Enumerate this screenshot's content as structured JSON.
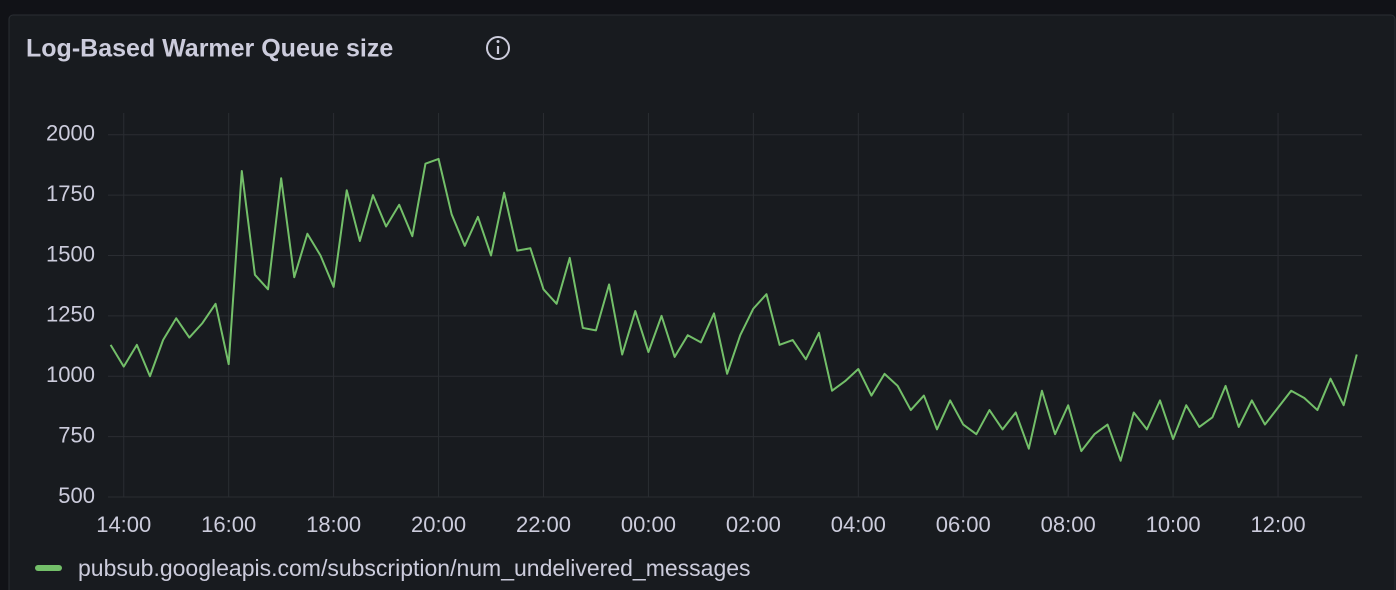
{
  "chart_data": {
    "type": "line",
    "title": "Log-Based Warmer Queue size",
    "x": [
      13.75,
      14.0,
      14.25,
      14.5,
      14.75,
      15.0,
      15.25,
      15.5,
      15.75,
      16.0,
      16.25,
      16.5,
      16.75,
      17.0,
      17.25,
      17.5,
      17.75,
      18.0,
      18.25,
      18.5,
      18.75,
      19.0,
      19.25,
      19.5,
      19.75,
      20.0,
      20.25,
      20.5,
      20.75,
      21.0,
      21.25,
      21.5,
      21.75,
      22.0,
      22.25,
      22.5,
      22.75,
      23.0,
      23.25,
      23.5,
      23.75,
      24.0,
      24.25,
      24.5,
      24.75,
      25.0,
      25.25,
      25.5,
      25.75,
      26.0,
      26.25,
      26.5,
      26.75,
      27.0,
      27.25,
      27.5,
      27.75,
      28.0,
      28.25,
      28.5,
      28.75,
      29.0,
      29.25,
      29.5,
      29.75,
      30.0,
      30.25,
      30.5,
      30.75,
      31.0,
      31.25,
      31.5,
      31.75,
      32.0,
      32.25,
      32.5,
      32.75,
      33.0,
      33.25,
      33.5,
      33.75,
      34.0,
      34.25,
      34.5,
      34.75,
      35.0,
      35.25,
      35.5,
      35.75,
      36.0,
      36.25,
      36.5,
      36.75,
      37.0,
      37.25,
      37.5
    ],
    "series": [
      {
        "name": "pubsub.googleapis.com/subscription/num_undelivered_messages",
        "color": "#73bf69",
        "values": [
          1130,
          1040,
          1130,
          1000,
          1150,
          1240,
          1160,
          1220,
          1300,
          1050,
          1850,
          1420,
          1360,
          1820,
          1410,
          1590,
          1500,
          1370,
          1770,
          1560,
          1750,
          1620,
          1710,
          1580,
          1880,
          1900,
          1670,
          1540,
          1660,
          1500,
          1760,
          1520,
          1530,
          1360,
          1300,
          1490,
          1200,
          1190,
          1380,
          1090,
          1270,
          1100,
          1250,
          1080,
          1170,
          1140,
          1260,
          1010,
          1170,
          1280,
          1340,
          1130,
          1150,
          1070,
          1180,
          940,
          980,
          1030,
          920,
          1010,
          960,
          860,
          920,
          780,
          900,
          800,
          760,
          860,
          780,
          850,
          700,
          940,
          760,
          880,
          690,
          760,
          800,
          650,
          850,
          780,
          900,
          740,
          880,
          790,
          830,
          960,
          790,
          900,
          800,
          870,
          940,
          910,
          860,
          990,
          880,
          1090
        ]
      }
    ],
    "xlim": [
      13.7,
      37.6
    ],
    "xticks": [
      {
        "value": 14,
        "label": "14:00"
      },
      {
        "value": 16,
        "label": "16:00"
      },
      {
        "value": 18,
        "label": "18:00"
      },
      {
        "value": 20,
        "label": "20:00"
      },
      {
        "value": 22,
        "label": "22:00"
      },
      {
        "value": 24,
        "label": "00:00"
      },
      {
        "value": 26,
        "label": "02:00"
      },
      {
        "value": 28,
        "label": "04:00"
      },
      {
        "value": 30,
        "label": "06:00"
      },
      {
        "value": 32,
        "label": "08:00"
      },
      {
        "value": 34,
        "label": "10:00"
      },
      {
        "value": 36,
        "label": "12:00"
      }
    ],
    "ylim": [
      500,
      2090
    ],
    "yticks": [
      500,
      750,
      1000,
      1250,
      1500,
      1750,
      2000
    ],
    "grid": true
  }
}
